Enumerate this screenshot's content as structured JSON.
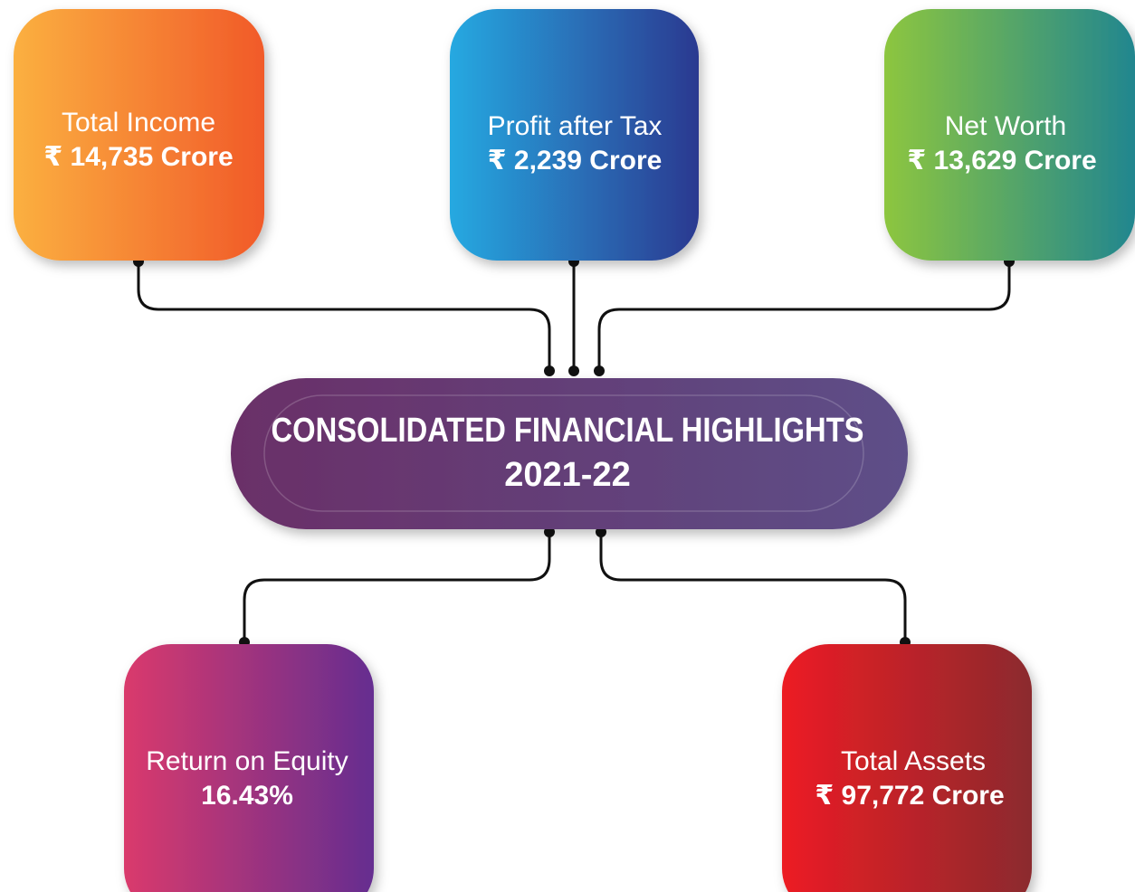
{
  "center": {
    "title": "CONSOLIDATED FINANCIAL HIGHLIGHTS",
    "year": "2021-22"
  },
  "nodes": [
    {
      "label": "Total Income",
      "value": "₹ 14,735 Crore"
    },
    {
      "label": "Profit after Tax",
      "value": "₹ 2,239 Crore"
    },
    {
      "label": "Net Worth",
      "value": "₹ 13,629 Crore"
    },
    {
      "label": "Return on Equity",
      "value": "16.43%"
    },
    {
      "label": "Total Assets",
      "value": "₹ 97,772 Crore"
    }
  ]
}
